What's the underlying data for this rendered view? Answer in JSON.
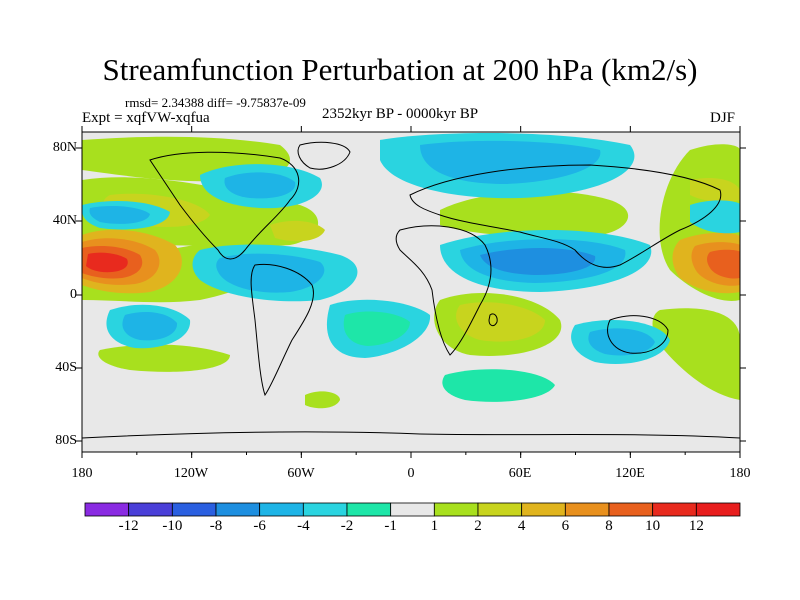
{
  "title": "Streamfunction Perturbation at 200 hPa (km2/s)",
  "stats": "rmsd= 2.34388 diff= -9.75837e-09",
  "experiment": "Expt = xqfVW-xqfua",
  "period": "2352kyr BP - 0000kyr BP",
  "season": "DJF",
  "lat_labels": [
    "80N",
    "40N",
    "0",
    "40S",
    "80S"
  ],
  "lon_labels": [
    "180",
    "120W",
    "60W",
    "0",
    "60E",
    "120E",
    "180"
  ],
  "colorbar": {
    "labels": [
      "-12",
      "-10",
      "-8",
      "-6",
      "-4",
      "-2",
      "-1",
      "1",
      "2",
      "4",
      "6",
      "8",
      "10",
      "12"
    ],
    "colors": [
      "#8a2be2",
      "#4a3fd8",
      "#2a5fe0",
      "#1e8fe0",
      "#1eb4e6",
      "#2ad4e0",
      "#1ee6a8",
      "#e8e8e8",
      "#a8e01e",
      "#c8d41e",
      "#e0b41e",
      "#e8901e",
      "#e8601e",
      "#e82a1e",
      "#e81e1e"
    ]
  }
}
